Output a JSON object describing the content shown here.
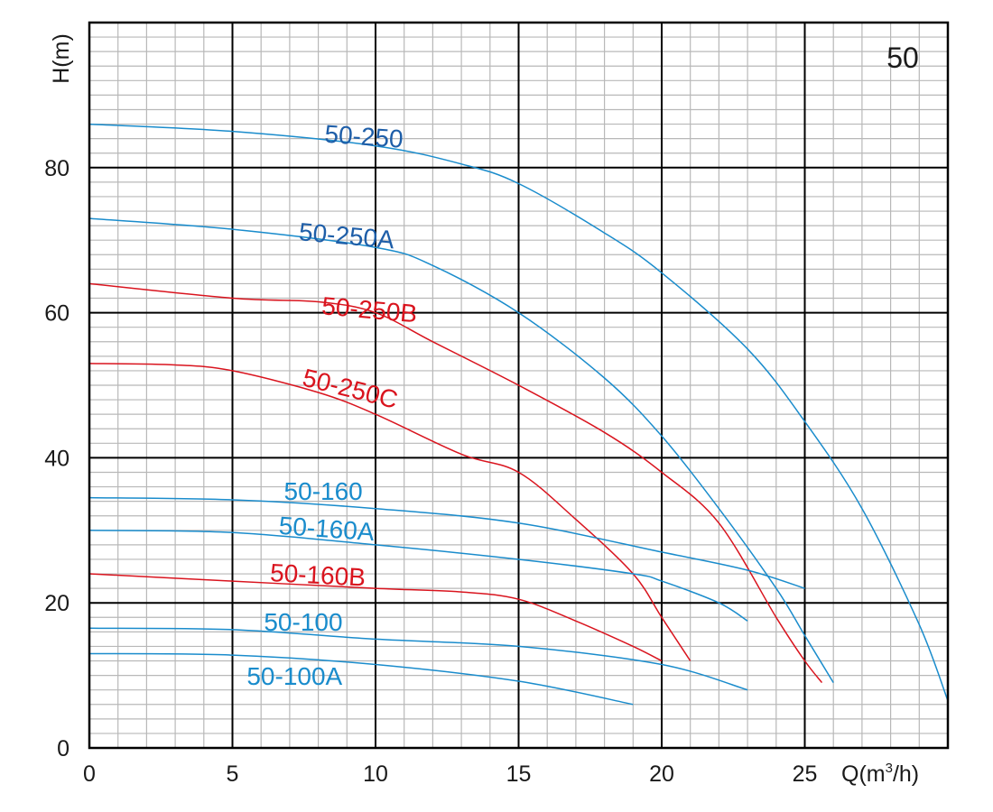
{
  "chart_data": {
    "type": "line",
    "family_label": "50",
    "xlabel": "Q(m³/h)",
    "ylabel": "H(m)",
    "xlim": [
      0,
      30
    ],
    "ylim": [
      0,
      100
    ],
    "x_ticks": [
      0,
      5,
      10,
      15,
      20,
      25
    ],
    "y_ticks": [
      0,
      20,
      40,
      60,
      80
    ],
    "grid": true,
    "legend": "none",
    "colors": {
      "blue": "#1a8ccc",
      "red": "#d9141e",
      "dark_blue": "#1e5ea8"
    },
    "series": [
      {
        "name": "50-250",
        "color": "#1a8ccc",
        "label_color": "#1e5ea8",
        "points": [
          [
            0,
            86
          ],
          [
            5,
            85
          ],
          [
            10,
            83
          ],
          [
            13,
            80.5
          ],
          [
            15,
            77.8
          ],
          [
            18,
            71
          ],
          [
            20,
            65.5
          ],
          [
            23,
            55
          ],
          [
            25,
            45
          ],
          [
            27,
            33
          ],
          [
            29,
            17
          ],
          [
            30,
            6.5
          ]
        ]
      },
      {
        "name": "50-250A",
        "color": "#1a8ccc",
        "label_color": "#1e5ea8",
        "points": [
          [
            0,
            73
          ],
          [
            5,
            71.5
          ],
          [
            10,
            69
          ],
          [
            12,
            66.5
          ],
          [
            15,
            60
          ],
          [
            18,
            51
          ],
          [
            20,
            43
          ],
          [
            22,
            33
          ],
          [
            24,
            22
          ],
          [
            25,
            15.5
          ],
          [
            26,
            9
          ]
        ]
      },
      {
        "name": "50-250B",
        "color": "#d9141e",
        "label_color": "#d9141e",
        "points": [
          [
            0,
            64
          ],
          [
            5,
            62
          ],
          [
            8,
            61.5
          ],
          [
            10,
            60
          ],
          [
            12,
            56
          ],
          [
            15,
            50
          ],
          [
            18,
            43.5
          ],
          [
            20,
            38
          ],
          [
            22,
            31
          ],
          [
            24,
            18
          ],
          [
            25,
            12
          ],
          [
            25.6,
            9
          ]
        ]
      },
      {
        "name": "50-250C",
        "color": "#d9141e",
        "label_color": "#d9141e",
        "points": [
          [
            0,
            53
          ],
          [
            3,
            52.8
          ],
          [
            5,
            52
          ],
          [
            8,
            49
          ],
          [
            10,
            46
          ],
          [
            13,
            40.5
          ],
          [
            15,
            38
          ],
          [
            17,
            31.5
          ],
          [
            19,
            24
          ],
          [
            20,
            18
          ],
          [
            21,
            12
          ]
        ]
      },
      {
        "name": "50-160",
        "color": "#1a8ccc",
        "label_color": "#1a8ccc",
        "points": [
          [
            0,
            34.5
          ],
          [
            5,
            34.2
          ],
          [
            10,
            33
          ],
          [
            15,
            31
          ],
          [
            20,
            27
          ],
          [
            23,
            24.5
          ],
          [
            25,
            22
          ]
        ]
      },
      {
        "name": "50-160A",
        "color": "#1a8ccc",
        "label_color": "#1a8ccc",
        "points": [
          [
            0,
            30
          ],
          [
            5,
            29.7
          ],
          [
            10,
            28
          ],
          [
            15,
            26
          ],
          [
            19,
            24
          ],
          [
            20,
            23
          ],
          [
            22,
            20
          ],
          [
            23,
            17.5
          ]
        ]
      },
      {
        "name": "50-160B",
        "color": "#d9141e",
        "label_color": "#d9141e",
        "points": [
          [
            0,
            24
          ],
          [
            5,
            23
          ],
          [
            10,
            22
          ],
          [
            13,
            21.5
          ],
          [
            15,
            20.5
          ],
          [
            17,
            17.5
          ],
          [
            19,
            14
          ],
          [
            20,
            12
          ]
        ]
      },
      {
        "name": "50-100",
        "color": "#1a8ccc",
        "label_color": "#1a8ccc",
        "points": [
          [
            0,
            16.5
          ],
          [
            5,
            16.3
          ],
          [
            10,
            15
          ],
          [
            15,
            14
          ],
          [
            20,
            11.5
          ],
          [
            23,
            8
          ]
        ]
      },
      {
        "name": "50-100A",
        "color": "#1a8ccc",
        "label_color": "#1a8ccc",
        "points": [
          [
            0,
            13
          ],
          [
            5,
            12.8
          ],
          [
            10,
            11.5
          ],
          [
            15,
            9.2
          ],
          [
            19,
            6
          ]
        ]
      }
    ],
    "curve_labels": [
      {
        "text": "50-250",
        "x": 8.2,
        "y": 83.5,
        "angle": 4
      },
      {
        "text": "50-250A",
        "x": 7.3,
        "y": 70.0,
        "angle": 5
      },
      {
        "text": "50-250B",
        "x": 8.1,
        "y": 59.8,
        "angle": 5
      },
      {
        "text": "50-250C",
        "x": 7.4,
        "y": 50.0,
        "angle": 14
      },
      {
        "text": "50-160",
        "x": 6.8,
        "y": 34.2,
        "angle": 0
      },
      {
        "text": "50-160A",
        "x": 6.6,
        "y": 29.5,
        "angle": 4
      },
      {
        "text": "50-160B",
        "x": 6.3,
        "y": 23.0,
        "angle": 3
      },
      {
        "text": "50-100",
        "x": 6.1,
        "y": 16.2,
        "angle": 0
      },
      {
        "text": "50-100A",
        "x": 5.5,
        "y": 8.7,
        "angle": 0
      }
    ]
  }
}
